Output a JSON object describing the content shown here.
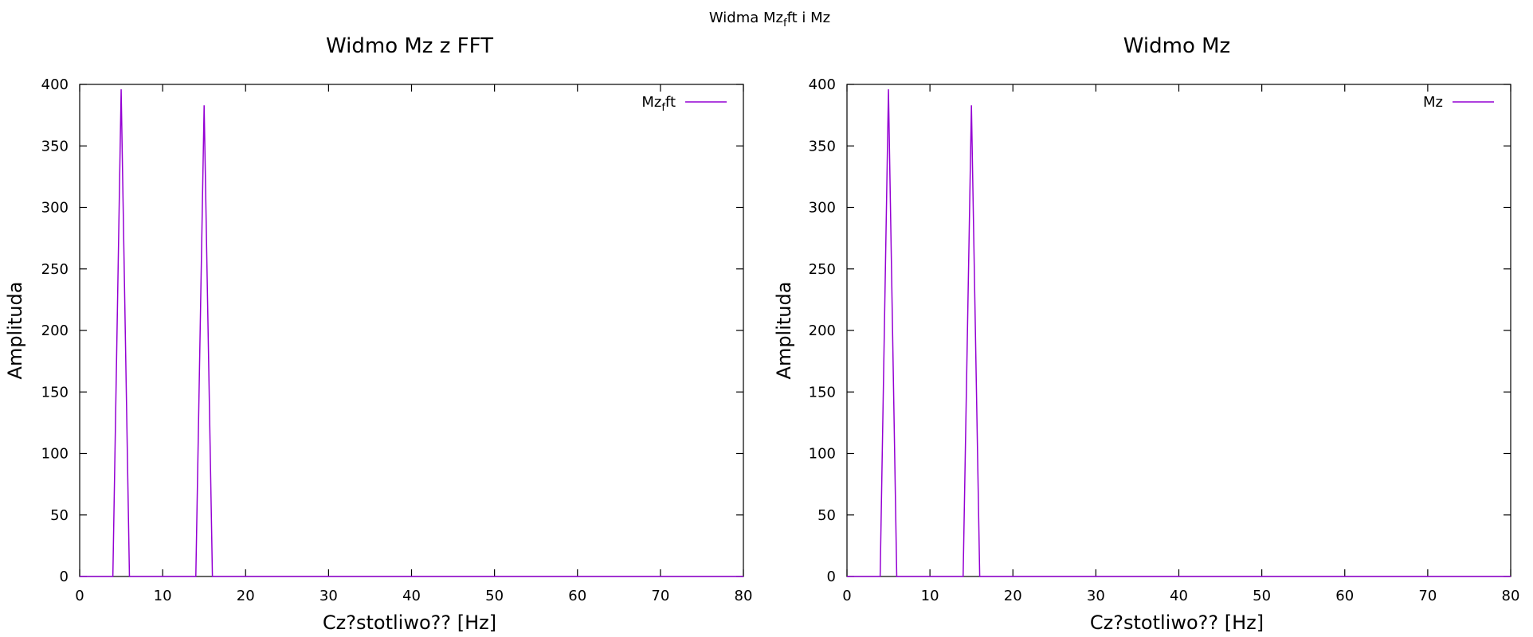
{
  "figure": {
    "title_main": "Widma Mz",
    "title_sub": "f",
    "title_rest": "ft i Mz"
  },
  "chart_data": [
    {
      "type": "line",
      "title": "Widmo Mz z FFT",
      "xlabel": "Cz?stotliwo?? [Hz]",
      "ylabel": "Amplituda",
      "xlim": [
        0,
        80
      ],
      "ylim": [
        0,
        400
      ],
      "xticks": [
        "0",
        "10",
        "20",
        "30",
        "40",
        "50",
        "60",
        "70",
        "80"
      ],
      "yticks": [
        "0",
        "50",
        "100",
        "150",
        "200",
        "250",
        "300",
        "350",
        "400"
      ],
      "grid": false,
      "legend_position": "top-right",
      "legend": {
        "main": "Mz",
        "sub": "f",
        "rest": "ft"
      },
      "series": [
        {
          "color": "#9400d3",
          "x": [
            0,
            1,
            2,
            3,
            4,
            5,
            6,
            7,
            8,
            9,
            10,
            11,
            12,
            13,
            14,
            15,
            16,
            17,
            18,
            19,
            20,
            21,
            22,
            23,
            24,
            25,
            26,
            27,
            28,
            29,
            30,
            31,
            32,
            33,
            34,
            35,
            36,
            37,
            38,
            39,
            40,
            41,
            42,
            43,
            44,
            45,
            46,
            47,
            48,
            49,
            50,
            51,
            52,
            53,
            54,
            55,
            56,
            57,
            58,
            59,
            60,
            61,
            62,
            63,
            64,
            65,
            66,
            67,
            68,
            69,
            70,
            71,
            72,
            73,
            74,
            75,
            76,
            77,
            78,
            79,
            80
          ],
          "y": [
            0,
            0,
            0,
            0,
            0,
            396,
            0,
            0,
            0,
            0,
            0,
            0,
            0,
            0,
            0,
            383,
            0,
            0,
            0,
            0,
            0,
            0,
            0,
            0,
            0,
            0,
            0,
            0,
            0,
            0,
            0,
            0,
            0,
            0,
            0,
            0,
            0,
            0,
            0,
            0,
            0,
            0,
            0,
            0,
            0,
            0,
            0,
            0,
            0,
            0,
            0,
            0,
            0,
            0,
            0,
            0,
            0,
            0,
            0,
            0,
            0,
            0,
            0,
            0,
            0,
            0,
            0,
            0,
            0,
            0,
            0,
            0,
            0,
            0,
            0,
            0,
            0,
            0,
            0,
            0,
            0
          ]
        }
      ]
    },
    {
      "type": "line",
      "title": "Widmo Mz",
      "xlabel": "Cz?stotliwo?? [Hz]",
      "ylabel": "Amplituda",
      "xlim": [
        0,
        80
      ],
      "ylim": [
        0,
        400
      ],
      "xticks": [
        "0",
        "10",
        "20",
        "30",
        "40",
        "50",
        "60",
        "70",
        "80"
      ],
      "yticks": [
        "0",
        "50",
        "100",
        "150",
        "200",
        "250",
        "300",
        "350",
        "400"
      ],
      "grid": false,
      "legend_position": "top-right",
      "legend": {
        "main": "Mz",
        "sub": "",
        "rest": ""
      },
      "series": [
        {
          "color": "#9400d3",
          "x": [
            0,
            1,
            2,
            3,
            4,
            5,
            6,
            7,
            8,
            9,
            10,
            11,
            12,
            13,
            14,
            15,
            16,
            17,
            18,
            19,
            20,
            21,
            22,
            23,
            24,
            25,
            26,
            27,
            28,
            29,
            30,
            31,
            32,
            33,
            34,
            35,
            36,
            37,
            38,
            39,
            40,
            41,
            42,
            43,
            44,
            45,
            46,
            47,
            48,
            49,
            50,
            51,
            52,
            53,
            54,
            55,
            56,
            57,
            58,
            59,
            60,
            61,
            62,
            63,
            64,
            65,
            66,
            67,
            68,
            69,
            70,
            71,
            72,
            73,
            74,
            75,
            76,
            77,
            78,
            79,
            80
          ],
          "y": [
            0,
            0,
            0,
            0,
            0,
            396,
            0,
            0,
            0,
            0,
            0,
            0,
            0,
            0,
            0,
            383,
            0,
            0,
            0,
            0,
            0,
            0,
            0,
            0,
            0,
            0,
            0,
            0,
            0,
            0,
            0,
            0,
            0,
            0,
            0,
            0,
            0,
            0,
            0,
            0,
            0,
            0,
            0,
            0,
            0,
            0,
            0,
            0,
            0,
            0,
            0,
            0,
            0,
            0,
            0,
            0,
            0,
            0,
            0,
            0,
            0,
            0,
            0,
            0,
            0,
            0,
            0,
            0,
            0,
            0,
            0,
            0,
            0,
            0,
            0,
            0,
            0,
            0,
            0,
            0,
            0
          ]
        }
      ]
    }
  ]
}
